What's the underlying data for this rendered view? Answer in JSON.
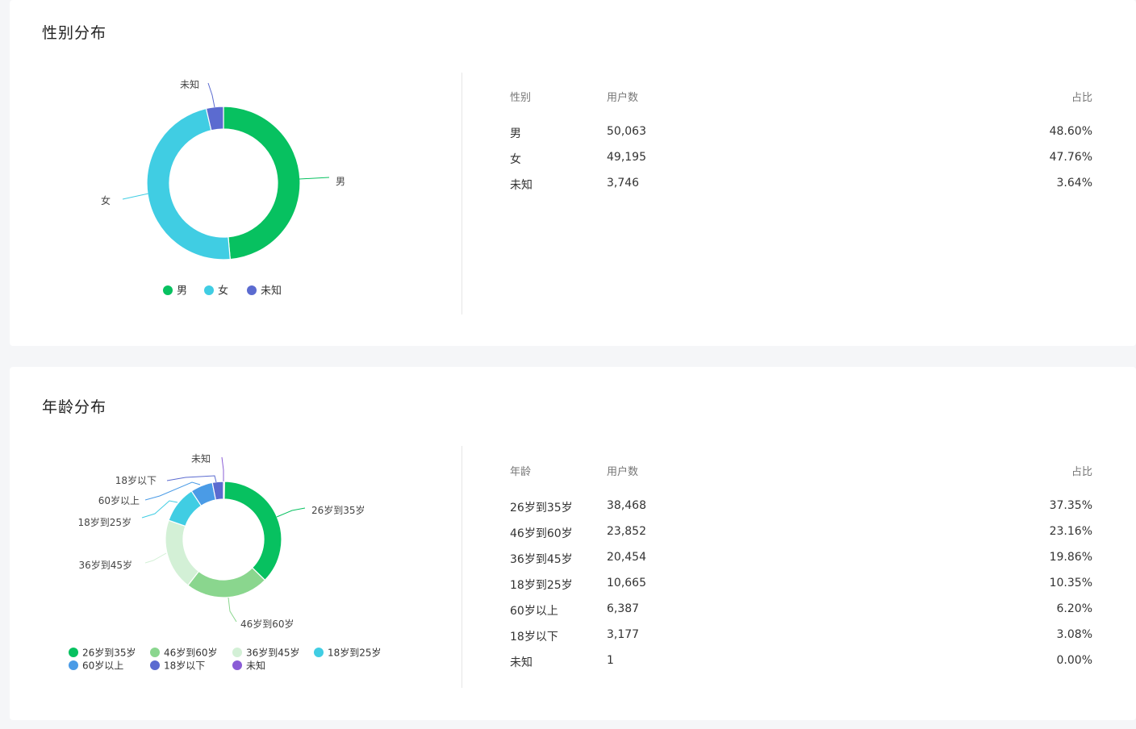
{
  "gender": {
    "title": "性别分布",
    "headers": [
      "性别",
      "用户数",
      "占比"
    ],
    "rows": [
      {
        "name": "男",
        "count": "50,063",
        "pct": "48.60%"
      },
      {
        "name": "女",
        "count": "49,195",
        "pct": "47.76%"
      },
      {
        "name": "未知",
        "count": "3,746",
        "pct": "3.64%"
      }
    ]
  },
  "age": {
    "title": "年龄分布",
    "headers": [
      "年龄",
      "用户数",
      "占比"
    ],
    "rows": [
      {
        "name": "26岁到35岁",
        "count": "38,468",
        "pct": "37.35%"
      },
      {
        "name": "46岁到60岁",
        "count": "23,852",
        "pct": "23.16%"
      },
      {
        "name": "36岁到45岁",
        "count": "20,454",
        "pct": "19.86%"
      },
      {
        "name": "18岁到25岁",
        "count": "10,665",
        "pct": "10.35%"
      },
      {
        "name": "60岁以上",
        "count": "6,387",
        "pct": "6.20%"
      },
      {
        "name": "18岁以下",
        "count": "3,177",
        "pct": "3.08%"
      },
      {
        "name": "未知",
        "count": "1",
        "pct": "0.00%"
      }
    ]
  },
  "chart_data": [
    {
      "type": "pie",
      "title": "性别分布",
      "categories": [
        "男",
        "女",
        "未知"
      ],
      "values": [
        50063,
        49195,
        3746
      ],
      "colors": [
        "#07c160",
        "#40cde3",
        "#5b6bd0"
      ],
      "legend": "bottom"
    },
    {
      "type": "pie",
      "title": "年龄分布",
      "categories": [
        "26岁到35岁",
        "46岁到60岁",
        "36岁到45岁",
        "18岁到25岁",
        "60岁以上",
        "18岁以下",
        "未知"
      ],
      "values": [
        38468,
        23852,
        20454,
        10665,
        6387,
        3177,
        1
      ],
      "colors": [
        "#07c160",
        "#8ad68e",
        "#d3f0d6",
        "#40cde3",
        "#4a9be6",
        "#5b6bd0",
        "#8a5cd6"
      ],
      "legend": "bottom"
    }
  ]
}
